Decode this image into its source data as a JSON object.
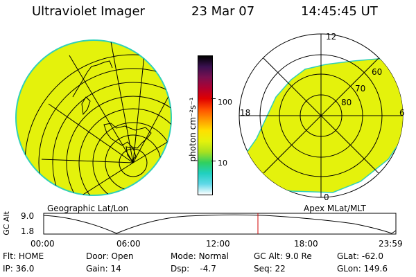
{
  "header": {
    "instrument": "Ultraviolet Imager",
    "date": "23 Mar 07",
    "time": "14:45:45 UT"
  },
  "colors": {
    "aurora_fill": "#e4f20c",
    "aurora_edge": "#30d0b8",
    "cursor": "#d00000"
  },
  "colorbar": {
    "unit_label": "photon cm⁻²s⁻¹",
    "ticks": [
      "100",
      "10"
    ],
    "gradient": [
      "#000000",
      "#3a1050",
      "#7a1050",
      "#b00030",
      "#e00000",
      "#ff5000",
      "#ff9a00",
      "#ffe000",
      "#e4f20c",
      "#a8e020",
      "#30d060",
      "#20d0c0",
      "#60d8e8",
      "#ffffff"
    ]
  },
  "geo_panel": {
    "caption": "Geographic Lat/Lon"
  },
  "apex_panel": {
    "caption": "Apex MLat/MLT",
    "mlt_labels": {
      "top": "12",
      "left": "18",
      "right": "6",
      "bottom": "0"
    },
    "mlat_labels": [
      "60",
      "70",
      "80"
    ]
  },
  "altitude_plot": {
    "ylabel": "GC Alt",
    "yticks": [
      "9.0",
      "1.8"
    ],
    "xticks": [
      "00:00",
      "06:00",
      "12:00",
      "18:00",
      "23:59"
    ],
    "cursor_time": "14:45:45"
  },
  "status": {
    "row1": [
      {
        "k": "Flt:",
        "v": "HOME"
      },
      {
        "k": "Door:",
        "v": "Open"
      },
      {
        "k": "Mode:",
        "v": "Normal"
      },
      {
        "k": "GC Alt:",
        "v": "9.0 Re"
      },
      {
        "k": "GLat:",
        "v": "-62.0"
      }
    ],
    "row2": [
      {
        "k": "IP:",
        "v": "36.0"
      },
      {
        "k": "Gain:",
        "v": "14"
      },
      {
        "k": "Dsp:",
        "v": "-4.7"
      },
      {
        "k": "Seq:",
        "v": "22"
      },
      {
        "k": "GLon:",
        "v": "149.6"
      }
    ]
  }
}
